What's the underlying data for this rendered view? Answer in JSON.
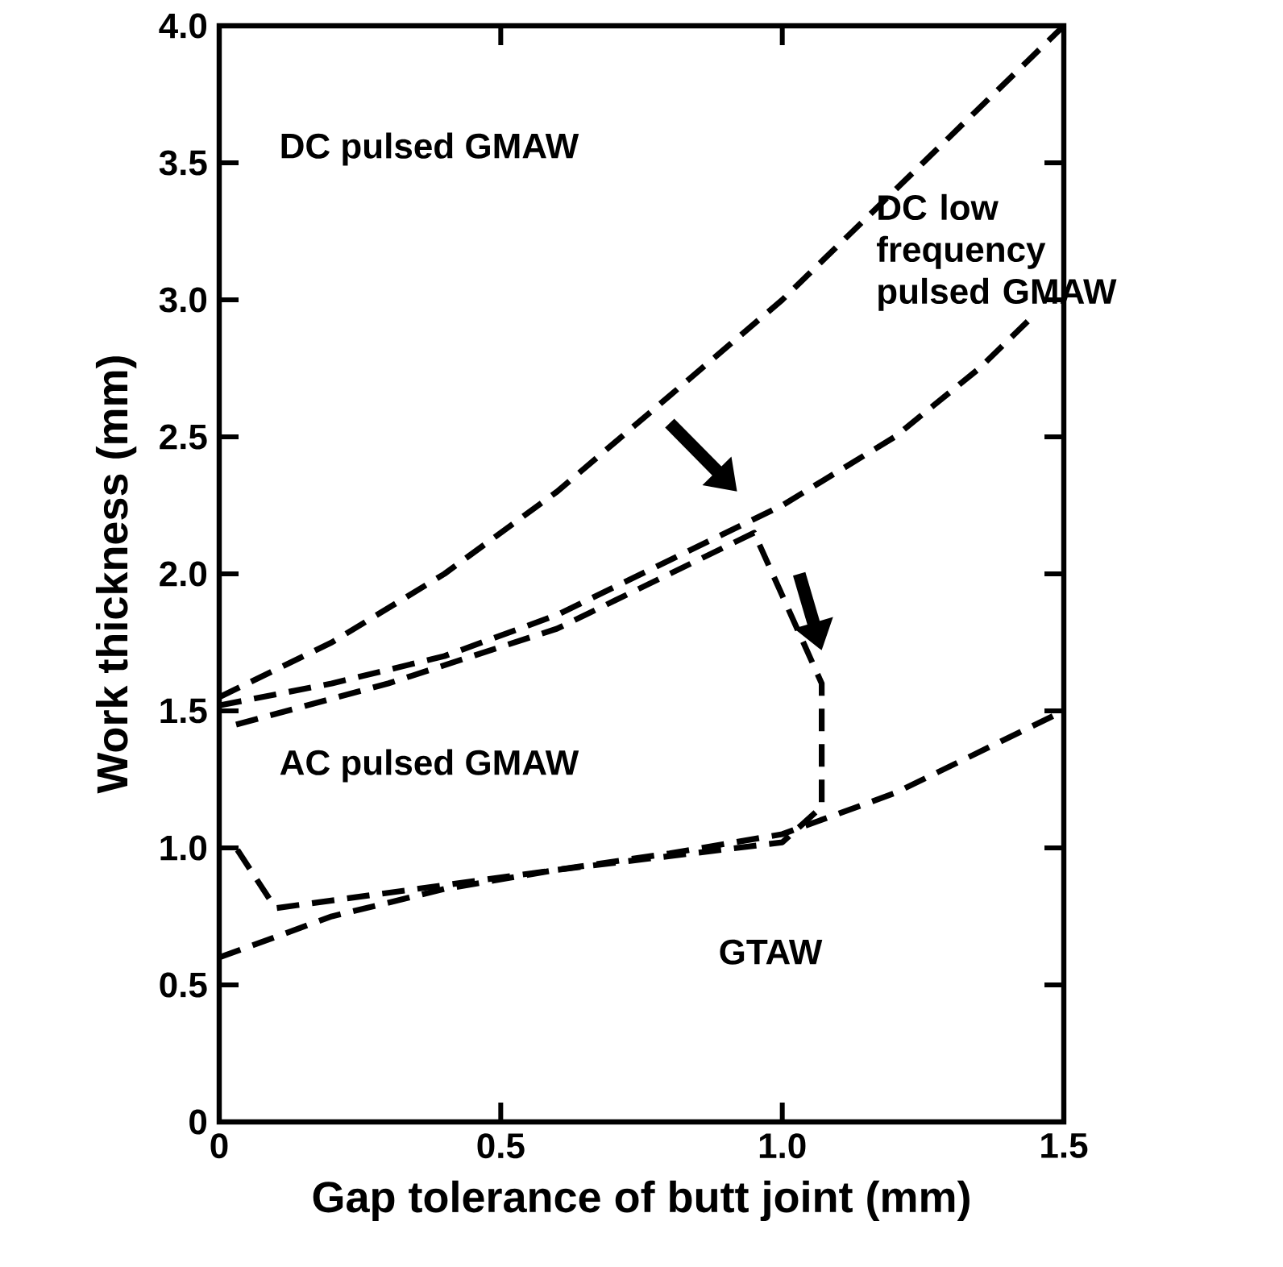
{
  "chart_data": {
    "type": "line",
    "xlabel": "Gap tolerance of butt joint (mm)",
    "ylabel": "Work thickness (mm)",
    "xlim": [
      0,
      1.5
    ],
    "ylim": [
      0,
      4.0
    ],
    "xticks": [
      0,
      0.5,
      {
        "value": 1,
        "label": "1.0"
      },
      1.5
    ],
    "yticks": [
      0,
      0.5,
      {
        "value": 1,
        "label": "1.0"
      },
      1.5,
      {
        "value": 2,
        "label": "2.0"
      },
      2.5,
      {
        "value": 3,
        "label": "3.0"
      },
      3.5,
      {
        "value": 4,
        "label": "4.0"
      }
    ],
    "line_style": "dashed",
    "marker": "none",
    "grid": false,
    "legend": false,
    "series": [
      {
        "color": "#000000",
        "x": [
          0,
          0.2,
          0.4,
          0.6,
          0.8,
          1.0,
          1.2,
          1.35,
          1.5
        ],
        "values": [
          1.55,
          1.75,
          2.0,
          2.3,
          2.65,
          3.0,
          3.4,
          3.7,
          4.0
        ]
      },
      {
        "color": "#000000",
        "x": [
          0,
          0.2,
          0.4,
          0.6,
          0.8,
          1.0,
          1.2,
          1.35,
          1.45
        ],
        "values": [
          1.52,
          1.6,
          1.7,
          1.85,
          2.05,
          2.25,
          2.5,
          2.75,
          2.95
        ]
      },
      {
        "color": "#000000",
        "x": [
          0,
          0.2,
          0.4,
          0.6,
          0.8,
          1.0,
          1.2,
          1.35,
          1.5
        ],
        "values": [
          0.6,
          0.75,
          0.85,
          0.92,
          0.98,
          1.05,
          1.2,
          1.35,
          1.5
        ]
      },
      {
        "color": "#000000",
        "x": [
          0.03,
          0.3,
          0.6,
          0.95,
          1.07,
          1.07,
          1.0,
          0.6,
          0.1,
          0.03
        ],
        "values": [
          1.45,
          1.6,
          1.8,
          2.15,
          1.6,
          1.15,
          1.02,
          0.92,
          0.78,
          1.0
        ]
      }
    ],
    "annotations": [
      "DC pulsed GMAW",
      "DC low frequency pulsed GMAW",
      "AC pulsed GMAW",
      "GTAW"
    ]
  }
}
